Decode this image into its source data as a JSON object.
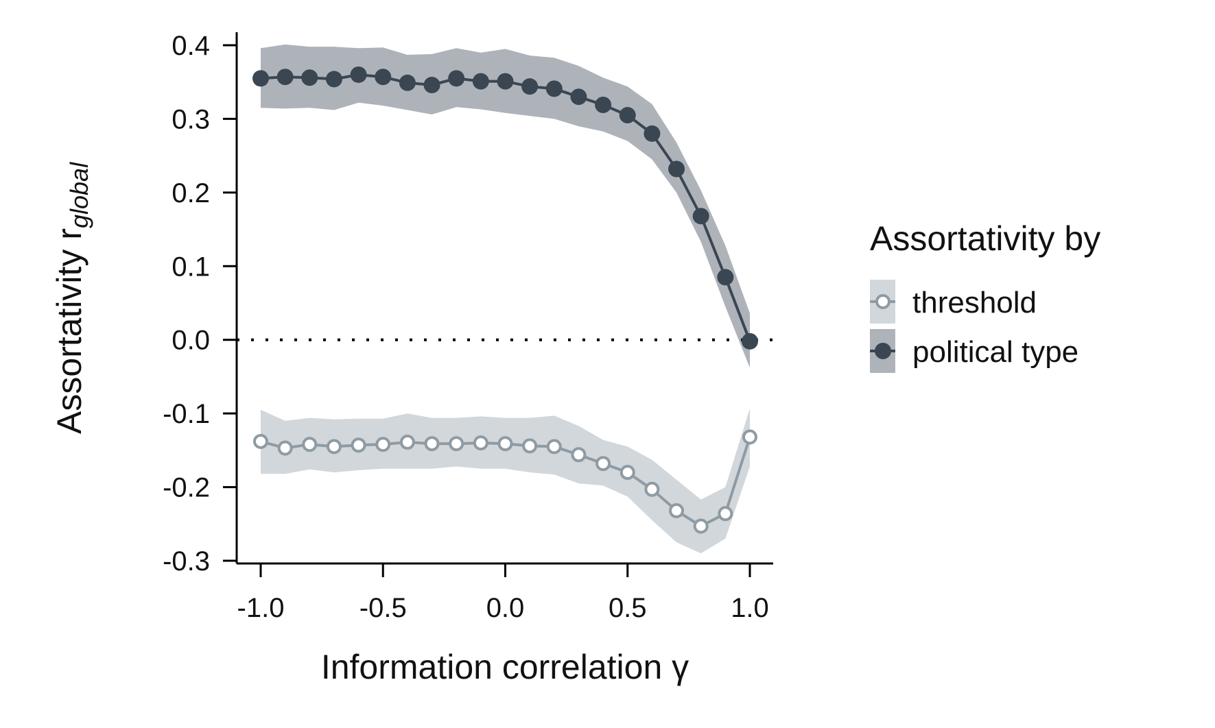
{
  "chart_data": {
    "type": "line",
    "xlabel": "Information correlation γ",
    "ylabel": "Assortativity r",
    "ylabel_subscript": "global",
    "xlim": [
      -1.1,
      1.1
    ],
    "ylim": [
      -0.3,
      0.42
    ],
    "xticks": [
      -1.0,
      -0.5,
      0.0,
      0.5,
      1.0
    ],
    "xtick_labels": [
      "-1.0",
      "-0.5",
      "0.0",
      "0.5",
      "1.0"
    ],
    "yticks": [
      -0.3,
      -0.2,
      -0.1,
      0.0,
      0.1,
      0.2,
      0.3,
      0.4
    ],
    "ytick_labels": [
      "-0.3",
      "-0.2",
      "-0.1",
      "0.0",
      "0.1",
      "0.2",
      "0.3",
      "0.4"
    ],
    "reference_line": {
      "y": 0.0,
      "style": "dotted"
    },
    "grid": false,
    "legend": {
      "title": "Assortativity by",
      "placement": "right"
    },
    "x": [
      -1.0,
      -0.9,
      -0.8,
      -0.7,
      -0.6,
      -0.5,
      -0.4,
      -0.3,
      -0.2,
      -0.1,
      0.0,
      0.1,
      0.2,
      0.3,
      0.4,
      0.5,
      0.6,
      0.7,
      0.8,
      0.9,
      1.0
    ],
    "series": [
      {
        "name": "threshold",
        "marker": "open-circle",
        "color": "#8e9ba4",
        "band_color": "#d2d7db",
        "values": [
          -0.138,
          -0.147,
          -0.142,
          -0.145,
          -0.143,
          -0.142,
          -0.139,
          -0.141,
          -0.141,
          -0.14,
          -0.141,
          -0.144,
          -0.145,
          -0.156,
          -0.168,
          -0.18,
          -0.203,
          -0.232,
          -0.253,
          -0.236,
          -0.132
        ],
        "lower": [
          -0.182,
          -0.182,
          -0.176,
          -0.18,
          -0.177,
          -0.175,
          -0.175,
          -0.175,
          -0.172,
          -0.175,
          -0.175,
          -0.18,
          -0.183,
          -0.195,
          -0.198,
          -0.213,
          -0.245,
          -0.275,
          -0.29,
          -0.27,
          -0.172
        ],
        "upper": [
          -0.095,
          -0.11,
          -0.106,
          -0.108,
          -0.107,
          -0.107,
          -0.1,
          -0.106,
          -0.106,
          -0.104,
          -0.106,
          -0.106,
          -0.103,
          -0.117,
          -0.136,
          -0.145,
          -0.163,
          -0.19,
          -0.217,
          -0.2,
          -0.093
        ]
      },
      {
        "name": "political type",
        "marker": "filled-circle",
        "color": "#3a4652",
        "band_color": "#aeb3ba",
        "values": [
          0.355,
          0.357,
          0.356,
          0.354,
          0.36,
          0.357,
          0.349,
          0.346,
          0.355,
          0.351,
          0.351,
          0.344,
          0.341,
          0.33,
          0.319,
          0.305,
          0.28,
          0.232,
          0.168,
          0.085,
          -0.002
        ],
        "lower": [
          0.315,
          0.314,
          0.315,
          0.312,
          0.322,
          0.318,
          0.312,
          0.306,
          0.316,
          0.313,
          0.308,
          0.304,
          0.3,
          0.29,
          0.283,
          0.27,
          0.245,
          0.2,
          0.133,
          0.045,
          -0.038
        ],
        "upper": [
          0.396,
          0.401,
          0.398,
          0.398,
          0.396,
          0.397,
          0.387,
          0.388,
          0.396,
          0.39,
          0.395,
          0.386,
          0.383,
          0.372,
          0.356,
          0.344,
          0.32,
          0.268,
          0.203,
          0.128,
          0.036
        ]
      }
    ]
  }
}
